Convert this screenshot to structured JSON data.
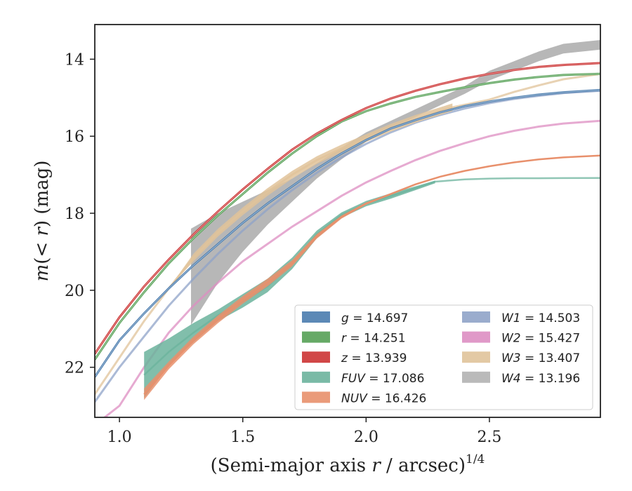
{
  "chart_data": {
    "type": "line",
    "xlabel": "(Semi-major axis r / arcsec)",
    "xlabel_italic_part": "r",
    "xlabel_exponent": "1/4",
    "ylabel": "m(< r) (mag)",
    "xlim": [
      0.9,
      2.95
    ],
    "ylim": [
      23.3,
      13.1
    ],
    "y_inverted": true,
    "xticks": [
      1.0,
      1.5,
      2.0,
      2.5
    ],
    "xtick_labels": [
      "1.0",
      "1.5",
      "2.0",
      "2.5"
    ],
    "yticks": [
      14,
      16,
      18,
      20,
      22
    ],
    "ytick_labels": [
      "14",
      "16",
      "18",
      "20",
      "22"
    ],
    "grid": false,
    "legend_position": "lower-right",
    "legend_columns": 2,
    "series": [
      {
        "name": "g",
        "total": "14.697",
        "color": "#4a7cae",
        "x": [
          0.9,
          1.0,
          1.1,
          1.2,
          1.3,
          1.4,
          1.5,
          1.6,
          1.7,
          1.8,
          1.9,
          2.0,
          2.1,
          2.2,
          2.3,
          2.4,
          2.5,
          2.6,
          2.7,
          2.8,
          2.95
        ],
        "y": [
          22.25,
          21.3,
          20.6,
          19.95,
          19.35,
          18.8,
          18.25,
          17.75,
          17.3,
          16.85,
          16.45,
          16.1,
          15.8,
          15.58,
          15.38,
          15.22,
          15.1,
          15.0,
          14.92,
          14.86,
          14.8
        ]
      },
      {
        "name": "r",
        "total": "14.251",
        "color": "#55a055",
        "x": [
          0.9,
          1.0,
          1.1,
          1.2,
          1.3,
          1.4,
          1.5,
          1.6,
          1.7,
          1.8,
          1.9,
          2.0,
          2.1,
          2.2,
          2.3,
          2.4,
          2.5,
          2.6,
          2.7,
          2.8,
          2.95
        ],
        "y": [
          21.8,
          20.85,
          20.05,
          19.3,
          18.65,
          18.05,
          17.5,
          16.95,
          16.45,
          16.0,
          15.62,
          15.35,
          15.15,
          14.98,
          14.85,
          14.73,
          14.62,
          14.53,
          14.46,
          14.41,
          14.38
        ]
      },
      {
        "name": "z",
        "total": "13.939",
        "color": "#cc3333",
        "x": [
          0.9,
          1.0,
          1.1,
          1.2,
          1.3,
          1.4,
          1.5,
          1.6,
          1.7,
          1.8,
          1.9,
          2.0,
          2.1,
          2.2,
          2.3,
          2.4,
          2.5,
          2.6,
          2.7,
          2.8,
          2.95
        ],
        "y": [
          21.65,
          20.7,
          19.9,
          19.2,
          18.55,
          17.95,
          17.38,
          16.85,
          16.35,
          15.93,
          15.58,
          15.27,
          15.02,
          14.82,
          14.65,
          14.5,
          14.38,
          14.28,
          14.2,
          14.15,
          14.1
        ]
      },
      {
        "name": "FUV",
        "total": "17.086",
        "color": "#6bb39c",
        "x": [
          1.1,
          1.2,
          1.3,
          1.4,
          1.5,
          1.6,
          1.7,
          1.8,
          1.9,
          2.0,
          2.1,
          2.2,
          2.28,
          2.4,
          2.5,
          2.6,
          2.7,
          2.8,
          2.95
        ],
        "y": [
          22.2,
          21.6,
          21.1,
          20.65,
          20.3,
          19.9,
          19.3,
          18.55,
          18.05,
          17.75,
          17.55,
          17.35,
          17.18,
          17.12,
          17.1,
          17.09,
          17.09,
          17.087,
          17.086
        ],
        "band_end_x": 2.28,
        "y_upper": [
          21.6,
          21.25,
          20.85,
          20.5,
          20.1,
          19.7,
          19.15,
          18.45,
          17.98,
          17.68,
          17.48,
          17.3,
          17.15,
          17.12,
          17.1,
          17.09,
          17.09,
          17.087,
          17.086
        ],
        "y_lower": [
          22.8,
          21.95,
          21.35,
          20.8,
          20.45,
          20.05,
          19.45,
          18.65,
          18.12,
          17.82,
          17.62,
          17.4,
          17.22,
          17.12,
          17.1,
          17.09,
          17.09,
          17.087,
          17.086
        ]
      },
      {
        "name": "NUV",
        "total": "16.426",
        "color": "#e8906c",
        "x": [
          1.1,
          1.2,
          1.3,
          1.4,
          1.5,
          1.6,
          1.7,
          1.8,
          1.9,
          2.0,
          2.1,
          2.2,
          2.3,
          2.4,
          2.5,
          2.6,
          2.7,
          2.8,
          2.95
        ],
        "y": [
          22.7,
          21.95,
          21.3,
          20.75,
          20.25,
          19.8,
          19.3,
          18.6,
          18.1,
          17.75,
          17.5,
          17.25,
          17.05,
          16.9,
          16.78,
          16.68,
          16.6,
          16.55,
          16.5
        ],
        "y_upper": [
          22.85,
          22.05,
          21.4,
          20.85,
          20.35,
          19.9,
          19.38,
          18.66,
          18.14,
          17.78,
          17.52,
          17.27,
          17.06,
          16.91,
          16.79,
          16.69,
          16.61,
          16.56,
          16.51
        ],
        "y_lower": [
          22.55,
          21.85,
          21.2,
          20.65,
          20.15,
          19.7,
          19.22,
          18.54,
          18.06,
          17.72,
          17.48,
          17.23,
          17.04,
          16.89,
          16.77,
          16.67,
          16.59,
          16.54,
          16.49
        ]
      },
      {
        "name": "W1",
        "total": "14.503",
        "color": "#8fa3c8",
        "x": [
          0.9,
          1.0,
          1.1,
          1.2,
          1.3,
          1.4,
          1.5,
          1.6,
          1.7,
          1.8,
          1.9,
          2.0,
          2.1,
          2.2,
          2.3,
          2.4,
          2.5,
          2.6,
          2.7,
          2.8,
          2.95
        ],
        "y": [
          22.9,
          22.0,
          21.2,
          20.4,
          19.7,
          19.05,
          18.45,
          17.9,
          17.4,
          16.95,
          16.55,
          16.2,
          15.9,
          15.65,
          15.45,
          15.28,
          15.14,
          15.03,
          14.95,
          14.88,
          14.82
        ]
      },
      {
        "name": "W2",
        "total": "15.427",
        "color": "#dd8ec2",
        "x": [
          0.9,
          1.0,
          1.1,
          1.2,
          1.3,
          1.4,
          1.5,
          1.6,
          1.7,
          1.8,
          1.9,
          2.0,
          2.1,
          2.2,
          2.3,
          2.4,
          2.5,
          2.6,
          2.7,
          2.8,
          2.95
        ],
        "y": [
          23.5,
          23.0,
          22.0,
          21.1,
          20.4,
          19.8,
          19.25,
          18.8,
          18.35,
          17.95,
          17.55,
          17.2,
          16.9,
          16.62,
          16.38,
          16.18,
          16.0,
          15.86,
          15.75,
          15.67,
          15.6
        ]
      },
      {
        "name": "W3",
        "total": "13.407",
        "color": "#e0c39a",
        "x": [
          0.9,
          1.0,
          1.1,
          1.2,
          1.3,
          1.4,
          1.5,
          1.6,
          1.7,
          1.8,
          1.9,
          2.0,
          2.1,
          2.2,
          2.35,
          2.5,
          2.6,
          2.7,
          2.8,
          2.95
        ],
        "y": [
          22.7,
          21.75,
          20.8,
          19.95,
          19.15,
          18.5,
          17.95,
          17.45,
          17.0,
          16.62,
          16.32,
          16.05,
          15.78,
          15.55,
          15.25,
          15.05,
          14.85,
          14.68,
          14.52,
          14.38
        ],
        "band_end_x": 2.35,
        "y_upper": [
          22.7,
          21.75,
          20.8,
          19.95,
          19.05,
          18.4,
          17.85,
          17.35,
          16.9,
          16.52,
          16.22,
          15.95,
          15.68,
          15.45,
          15.15,
          15.05,
          14.85,
          14.68,
          14.52,
          14.38
        ],
        "y_lower": [
          22.7,
          21.75,
          20.8,
          19.95,
          19.25,
          18.6,
          18.05,
          17.55,
          17.1,
          16.72,
          16.42,
          16.15,
          15.88,
          15.65,
          15.35,
          15.05,
          14.85,
          14.68,
          14.52,
          14.38
        ]
      },
      {
        "name": "W4",
        "total": "13.196",
        "color": "#b3b3b3",
        "x": [
          1.29,
          1.4,
          1.5,
          1.6,
          1.7,
          1.8,
          1.9,
          2.0,
          2.1,
          2.2,
          2.3,
          2.4,
          2.5,
          2.6,
          2.7,
          2.8,
          2.95
        ],
        "y_upper": [
          18.4,
          18.0,
          17.7,
          17.4,
          17.1,
          16.7,
          16.3,
          15.9,
          15.6,
          15.3,
          15.0,
          14.7,
          14.3,
          14.05,
          13.8,
          13.6,
          13.5
        ],
        "y_lower": [
          20.9,
          19.8,
          19.0,
          18.3,
          17.7,
          17.1,
          16.6,
          16.15,
          15.8,
          15.5,
          15.2,
          14.9,
          14.55,
          14.3,
          14.05,
          13.85,
          13.75
        ]
      }
    ]
  }
}
